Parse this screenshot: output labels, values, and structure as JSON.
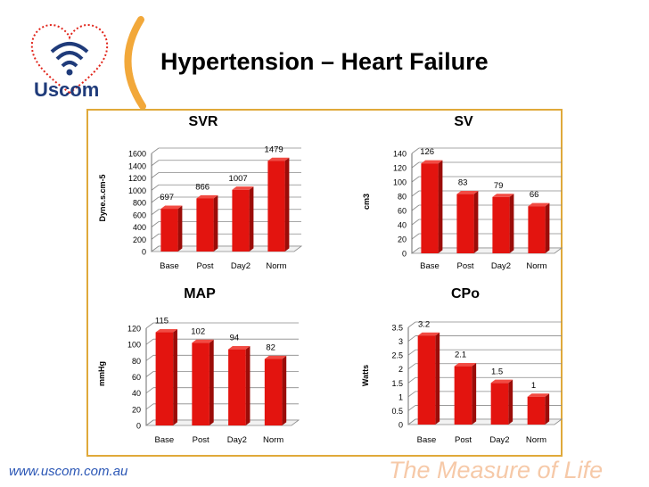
{
  "slide": {
    "title": "Hypertension – Heart Failure",
    "brand": "Uscom",
    "website": "www.uscom.com.au",
    "tagline": "The Measure of Life"
  },
  "colors": {
    "bar": "#e3140f",
    "bar_dark": "#9b0c08",
    "bar_top": "#f24b43",
    "accent": "#e0a93a",
    "brand_blue": "#1f3b7a",
    "logo_red": "#e1251b",
    "website_blue": "#2a56b5",
    "tagline": "#f6c9a8"
  },
  "chart_data": [
    {
      "type": "bar",
      "title": "SVR",
      "ylabel": "Dyne.s.cm-5",
      "categories": [
        "Base",
        "Post",
        "Day2",
        "Norm"
      ],
      "values": [
        697,
        866,
        1007,
        1479
      ],
      "labels": [
        "697",
        "866",
        "1007",
        "1479"
      ],
      "ylim": [
        0,
        1600
      ],
      "yticks": [
        "0",
        "200",
        "400",
        "600",
        "800",
        "1000",
        "1200",
        "1400",
        "1600"
      ]
    },
    {
      "type": "bar",
      "title": "SV",
      "ylabel": "cm3",
      "categories": [
        "Base",
        "Post",
        "Day2",
        "Norm"
      ],
      "values": [
        126,
        83,
        79,
        66
      ],
      "labels": [
        "126",
        "83",
        "79",
        "66"
      ],
      "ylim": [
        0,
        140
      ],
      "yticks": [
        "0",
        "20",
        "40",
        "60",
        "80",
        "100",
        "120",
        "140"
      ]
    },
    {
      "type": "bar",
      "title": "MAP",
      "ylabel": "mmHg",
      "categories": [
        "Base",
        "Post",
        "Day2",
        "Norm"
      ],
      "values": [
        115,
        102,
        94,
        82
      ],
      "labels": [
        "115",
        "102",
        "94",
        "82"
      ],
      "ylim": [
        0,
        120
      ],
      "yticks": [
        "0",
        "20",
        "40",
        "60",
        "80",
        "100",
        "120"
      ]
    },
    {
      "type": "bar",
      "title": "CPo",
      "ylabel": "Watts",
      "categories": [
        "Base",
        "Post",
        "Day2",
        "Norm"
      ],
      "values": [
        3.2,
        2.1,
        1.5,
        1
      ],
      "labels": [
        "3.2",
        "2.1",
        "1.5",
        "1"
      ],
      "ylim": [
        0,
        3.5
      ],
      "yticks": [
        "0",
        "0.5",
        "1",
        "1.5",
        "2",
        "2.5",
        "3",
        "3.5"
      ]
    }
  ]
}
